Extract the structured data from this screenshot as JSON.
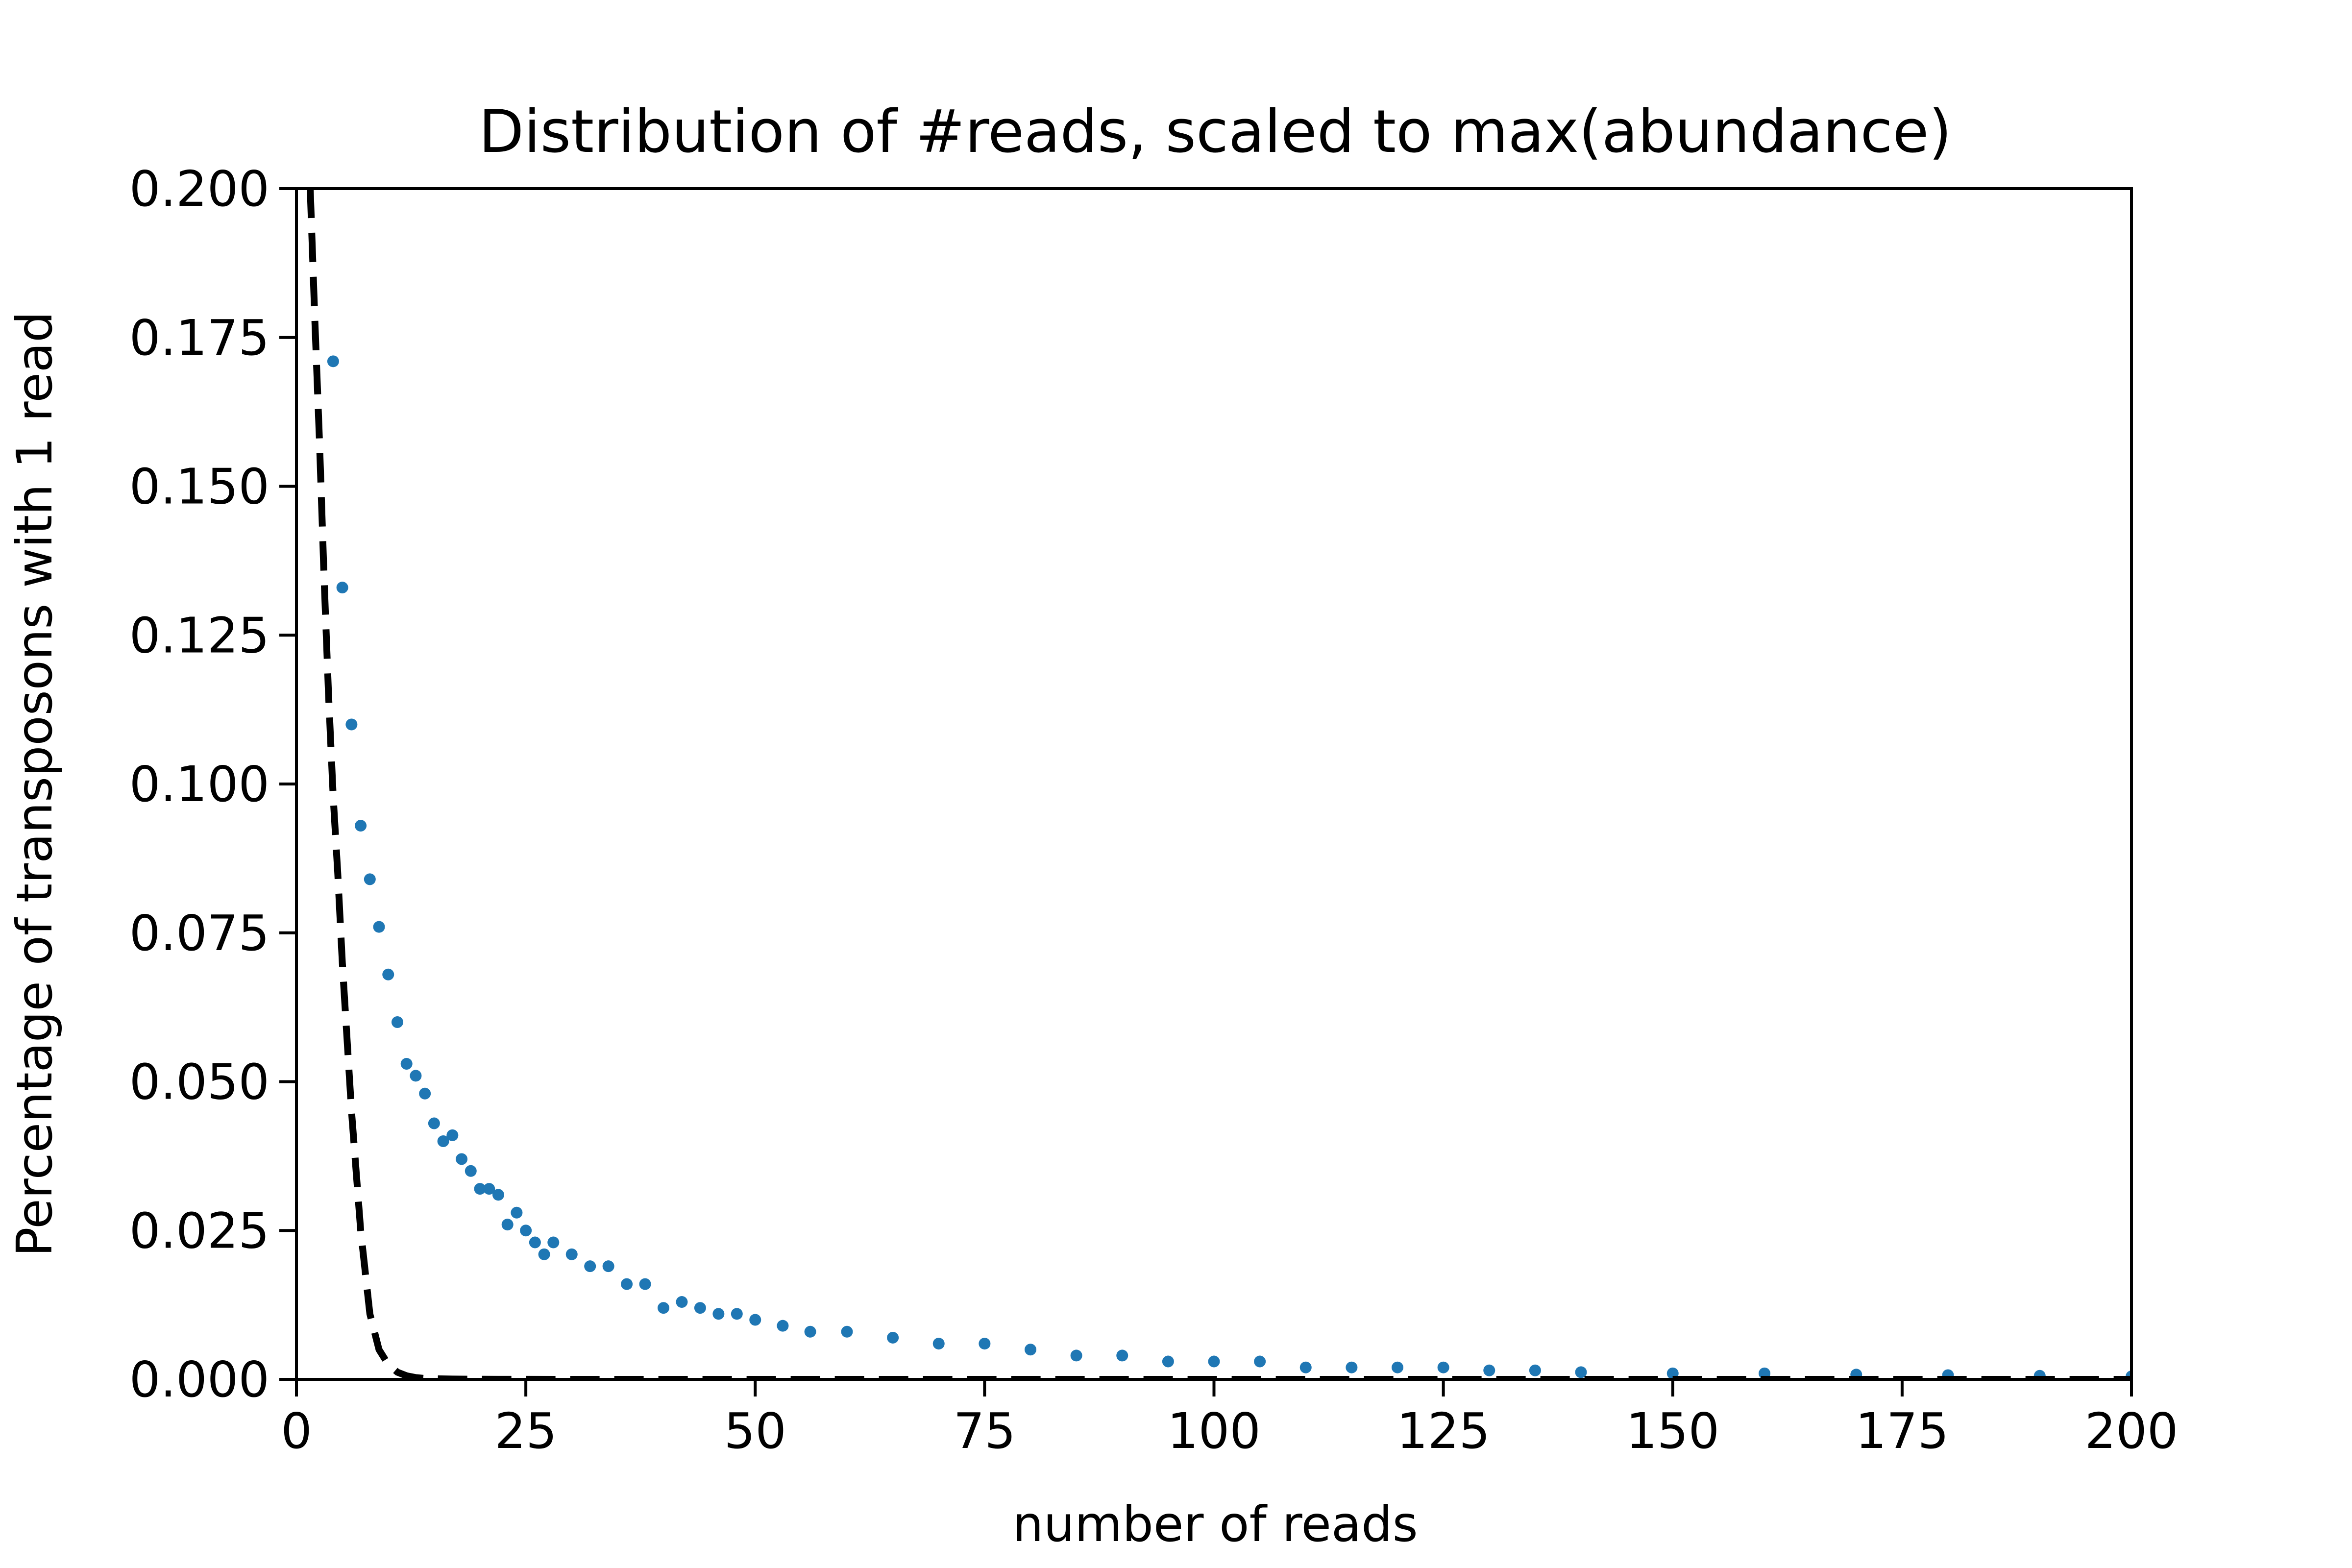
{
  "chart_data": {
    "type": "scatter",
    "title": "Distribution of #reads, scaled to max(abundance)",
    "xlabel": "number of reads",
    "ylabel": "Percentage of transposons with 1 read",
    "xlim": [
      0,
      200
    ],
    "ylim": [
      0,
      0.2
    ],
    "xticks": [
      "0",
      "25",
      "50",
      "75",
      "100",
      "125",
      "150",
      "175",
      "200"
    ],
    "yticks": [
      "0.000",
      "0.025",
      "0.050",
      "0.075",
      "0.100",
      "0.125",
      "0.150",
      "0.175",
      "0.200"
    ],
    "grid": false,
    "legend": "none",
    "series": [
      {
        "kind": "points",
        "color": "#1f77b4",
        "x": [
          4,
          5,
          6,
          7,
          8,
          9,
          10,
          11,
          12,
          13,
          14,
          15,
          16,
          17,
          18,
          19,
          20,
          21,
          22,
          23,
          24,
          25,
          26,
          27,
          28,
          30,
          32,
          34,
          36,
          38,
          40,
          42,
          44,
          46,
          48,
          50,
          53,
          56,
          60,
          65,
          70,
          75,
          80,
          85,
          90,
          95,
          100,
          105,
          110,
          115,
          120,
          125,
          130,
          135,
          140,
          150,
          160,
          170,
          180,
          190,
          200
        ],
        "y": [
          0.171,
          0.133,
          0.11,
          0.093,
          0.084,
          0.076,
          0.068,
          0.06,
          0.053,
          0.051,
          0.048,
          0.043,
          0.04,
          0.041,
          0.037,
          0.035,
          0.032,
          0.032,
          0.031,
          0.026,
          0.028,
          0.025,
          0.023,
          0.021,
          0.023,
          0.021,
          0.019,
          0.019,
          0.016,
          0.016,
          0.012,
          0.013,
          0.012,
          0.011,
          0.011,
          0.01,
          0.009,
          0.008,
          0.008,
          0.007,
          0.006,
          0.006,
          0.005,
          0.004,
          0.004,
          0.003,
          0.003,
          0.003,
          0.002,
          0.002,
          0.002,
          0.002,
          0.0015,
          0.0015,
          0.0012,
          0.001,
          0.001,
          0.0008,
          0.0007,
          0.0006,
          0.0005
        ]
      },
      {
        "kind": "line",
        "style": "dashed",
        "color": "#000000",
        "x": [
          1.5,
          2,
          2.5,
          3,
          3.5,
          4,
          4.5,
          5,
          6,
          7,
          8,
          9,
          10,
          11,
          12,
          13,
          14,
          15,
          17,
          20,
          25,
          30,
          50,
          100,
          150,
          200
        ],
        "y": [
          0.2,
          0.178,
          0.158,
          0.135,
          0.115,
          0.098,
          0.085,
          0.07,
          0.045,
          0.025,
          0.011,
          0.005,
          0.0025,
          0.0012,
          0.0006,
          0.0003,
          0.00015,
          0.0001,
          5e-05,
          2e-05,
          1e-05,
          0,
          0,
          0,
          0,
          0
        ]
      }
    ]
  }
}
